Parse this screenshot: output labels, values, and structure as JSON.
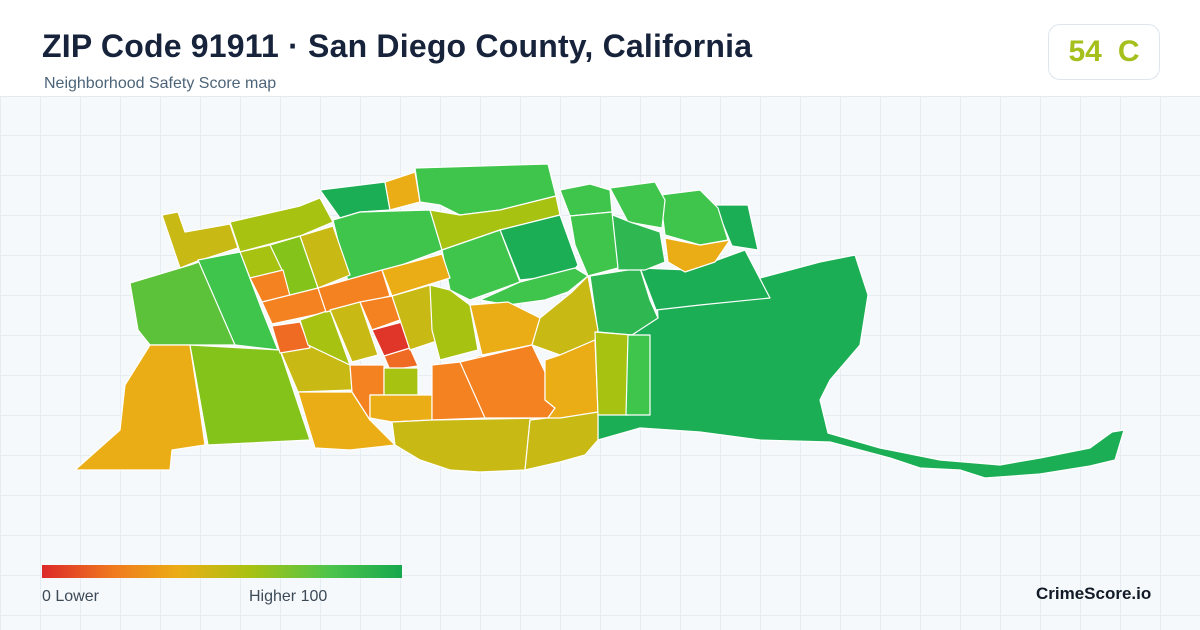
{
  "header": {
    "title": "ZIP Code 91911 · San Diego County, California",
    "subtitle": "Neighborhood Safety Score map"
  },
  "score_badge": {
    "score": "54",
    "grade": "C",
    "color": "#a5bf1c"
  },
  "legend": {
    "low_label": "0  Lower",
    "high_label": "Higher  100",
    "colors": [
      "#dc2a2a",
      "#f07a1e",
      "#ebad15",
      "#a8c212",
      "#4dc44c",
      "#17a84d"
    ]
  },
  "brand": "CrimeScore.io",
  "map": {
    "color_scale": {
      "red": "#e0362a",
      "red_orange": "#ef6a22",
      "orange": "#f58220",
      "orange_amber": "#ee9a1b",
      "amber": "#ebad15",
      "olive": "#c9b914",
      "yellow_green": "#a8c212",
      "green_yellow": "#84c41a",
      "green": "#5cc23a",
      "light_green": "#3fc44c",
      "green_dark": "#2fb852",
      "dark_green": "#1cae55"
    }
  }
}
